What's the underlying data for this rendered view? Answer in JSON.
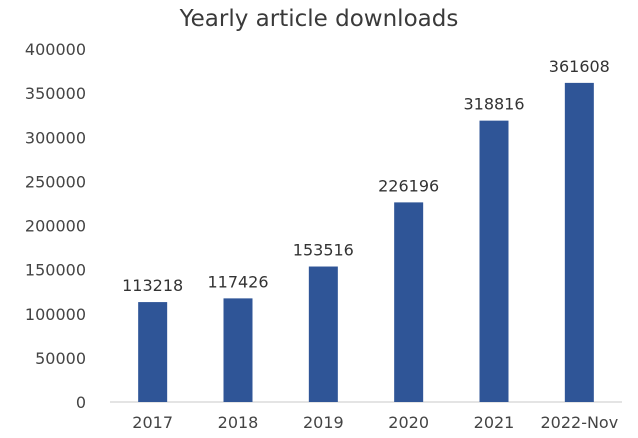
{
  "chart_data": {
    "type": "bar",
    "title": "Yearly article downloads",
    "xlabel": "",
    "ylabel": "",
    "categories": [
      "2017",
      "2018",
      "2019",
      "2020",
      "2021",
      "2022-Nov"
    ],
    "values": [
      113218,
      117426,
      153516,
      226196,
      318816,
      361608
    ],
    "data_labels": [
      "113218",
      "117426",
      "153516",
      "226196",
      "318816",
      "361608"
    ],
    "y_ticks": [
      "0",
      "50000",
      "100000",
      "150000",
      "200000",
      "250000",
      "300000",
      "350000",
      "400000"
    ],
    "ylim": [
      0,
      400000
    ],
    "grid": false,
    "legend": "none",
    "bar_color": "#2F5597"
  }
}
